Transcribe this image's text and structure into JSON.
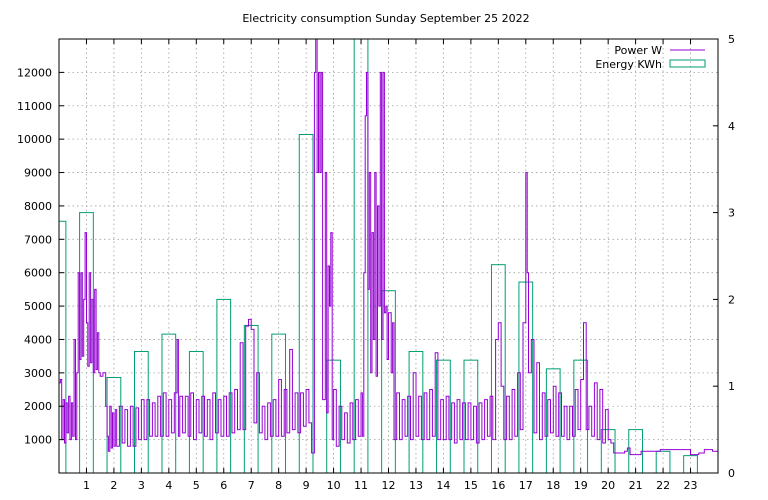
{
  "chart_data": {
    "type": "area",
    "title": "Electricity consumption Sunday September 25 2022",
    "xlim": [
      0,
      24
    ],
    "ylim": [
      0,
      13000
    ],
    "y2lim": [
      0,
      5
    ],
    "x_ticks": [
      1,
      2,
      3,
      4,
      5,
      6,
      7,
      8,
      9,
      10,
      11,
      12,
      13,
      14,
      15,
      16,
      17,
      18,
      19,
      20,
      21,
      22,
      23
    ],
    "y_ticks": [
      1000,
      2000,
      3000,
      4000,
      5000,
      6000,
      7000,
      8000,
      9000,
      10000,
      11000,
      12000
    ],
    "y2_ticks": [
      0,
      1,
      2,
      3,
      4,
      5
    ],
    "grid": true,
    "legend_position": "top-right",
    "colors": {
      "power": "#9400d3",
      "energy": "#009e73"
    },
    "series": [
      {
        "name": "Power W",
        "style": "steps",
        "points": [
          [
            0.0,
            2700
          ],
          [
            0.05,
            2800
          ],
          [
            0.1,
            1000
          ],
          [
            0.15,
            2200
          ],
          [
            0.2,
            900
          ],
          [
            0.25,
            2100
          ],
          [
            0.3,
            1200
          ],
          [
            0.35,
            2300
          ],
          [
            0.4,
            1000
          ],
          [
            0.45,
            2100
          ],
          [
            0.5,
            1100
          ],
          [
            0.55,
            4000
          ],
          [
            0.6,
            1000
          ],
          [
            0.65,
            3000
          ],
          [
            0.7,
            6000
          ],
          [
            0.75,
            3400
          ],
          [
            0.8,
            6000
          ],
          [
            0.85,
            3500
          ],
          [
            0.9,
            5200
          ],
          [
            0.95,
            7200
          ],
          [
            1.0,
            4500
          ],
          [
            1.05,
            3200
          ],
          [
            1.1,
            6000
          ],
          [
            1.15,
            3300
          ],
          [
            1.2,
            5200
          ],
          [
            1.25,
            3000
          ],
          [
            1.3,
            5500
          ],
          [
            1.35,
            3100
          ],
          [
            1.4,
            4200
          ],
          [
            1.45,
            3000
          ],
          [
            1.5,
            2900
          ],
          [
            1.6,
            3000
          ],
          [
            1.7,
            2000
          ],
          [
            1.75,
            1100
          ],
          [
            1.8,
            650
          ],
          [
            1.85,
            2000
          ],
          [
            1.9,
            750
          ],
          [
            1.95,
            1800
          ],
          [
            2.0,
            800
          ],
          [
            2.05,
            1900
          ],
          [
            2.1,
            800
          ],
          [
            2.2,
            2000
          ],
          [
            2.3,
            900
          ],
          [
            2.4,
            1900
          ],
          [
            2.5,
            800
          ],
          [
            2.6,
            2000
          ],
          [
            2.7,
            800
          ],
          [
            2.8,
            1950
          ],
          [
            2.9,
            1000
          ],
          [
            3.0,
            2200
          ],
          [
            3.1,
            1000
          ],
          [
            3.2,
            2200
          ],
          [
            3.3,
            1100
          ],
          [
            3.4,
            2100
          ],
          [
            3.5,
            1100
          ],
          [
            3.6,
            2300
          ],
          [
            3.7,
            1100
          ],
          [
            3.8,
            2400
          ],
          [
            3.9,
            1100
          ],
          [
            4.0,
            2200
          ],
          [
            4.1,
            1200
          ],
          [
            4.2,
            2400
          ],
          [
            4.3,
            4000
          ],
          [
            4.35,
            1100
          ],
          [
            4.4,
            2300
          ],
          [
            4.5,
            1200
          ],
          [
            4.6,
            2300
          ],
          [
            4.7,
            1100
          ],
          [
            4.8,
            2400
          ],
          [
            4.9,
            1000
          ],
          [
            5.0,
            2200
          ],
          [
            5.1,
            1200
          ],
          [
            5.2,
            2300
          ],
          [
            5.3,
            1100
          ],
          [
            5.4,
            2200
          ],
          [
            5.5,
            1000
          ],
          [
            5.6,
            2400
          ],
          [
            5.7,
            1200
          ],
          [
            5.8,
            2200
          ],
          [
            5.9,
            1100
          ],
          [
            6.0,
            2300
          ],
          [
            6.1,
            1100
          ],
          [
            6.2,
            2400
          ],
          [
            6.3,
            1200
          ],
          [
            6.4,
            2500
          ],
          [
            6.5,
            1300
          ],
          [
            6.6,
            3900
          ],
          [
            6.7,
            1300
          ],
          [
            6.8,
            4400
          ],
          [
            6.9,
            4600
          ],
          [
            7.0,
            4300
          ],
          [
            7.1,
            1500
          ],
          [
            7.2,
            3000
          ],
          [
            7.3,
            1200
          ],
          [
            7.4,
            2000
          ],
          [
            7.5,
            1000
          ],
          [
            7.6,
            2100
          ],
          [
            7.7,
            1100
          ],
          [
            7.8,
            2200
          ],
          [
            7.9,
            1100
          ],
          [
            8.0,
            2800
          ],
          [
            8.1,
            1100
          ],
          [
            8.2,
            2500
          ],
          [
            8.3,
            1200
          ],
          [
            8.4,
            3700
          ],
          [
            8.5,
            1300
          ],
          [
            8.6,
            2400
          ],
          [
            8.7,
            1200
          ],
          [
            8.8,
            2400
          ],
          [
            8.9,
            1400
          ],
          [
            9.0,
            2500
          ],
          [
            9.1,
            1500
          ],
          [
            9.2,
            600
          ],
          [
            9.3,
            12000
          ],
          [
            9.35,
            13000
          ],
          [
            9.4,
            9000
          ],
          [
            9.45,
            12000
          ],
          [
            9.5,
            9000
          ],
          [
            9.55,
            12000
          ],
          [
            9.6,
            2200
          ],
          [
            9.7,
            9000
          ],
          [
            9.75,
            1800
          ],
          [
            9.8,
            6200
          ],
          [
            9.85,
            5000
          ],
          [
            9.9,
            7200
          ],
          [
            9.95,
            1000
          ],
          [
            10.0,
            2500
          ],
          [
            10.1,
            800
          ],
          [
            10.2,
            2000
          ],
          [
            10.3,
            1000
          ],
          [
            10.4,
            1800
          ],
          [
            10.5,
            900
          ],
          [
            10.6,
            2100
          ],
          [
            10.7,
            1000
          ],
          [
            10.8,
            2200
          ],
          [
            10.9,
            1100
          ],
          [
            11.0,
            2400
          ],
          [
            11.05,
            1100
          ],
          [
            11.1,
            6000
          ],
          [
            11.15,
            10700
          ],
          [
            11.2,
            12000
          ],
          [
            11.25,
            5500
          ],
          [
            11.3,
            9000
          ],
          [
            11.35,
            3000
          ],
          [
            11.4,
            7200
          ],
          [
            11.45,
            4000
          ],
          [
            11.5,
            9000
          ],
          [
            11.55,
            2900
          ],
          [
            11.6,
            8000
          ],
          [
            11.65,
            5000
          ],
          [
            11.7,
            12000
          ],
          [
            11.75,
            4000
          ],
          [
            11.8,
            12000
          ],
          [
            11.85,
            4800
          ],
          [
            11.9,
            5000
          ],
          [
            11.95,
            3400
          ],
          [
            12.0,
            4800
          ],
          [
            12.1,
            3000
          ],
          [
            12.15,
            4500
          ],
          [
            12.2,
            1000
          ],
          [
            12.3,
            2400
          ],
          [
            12.4,
            1000
          ],
          [
            12.5,
            2200
          ],
          [
            12.6,
            1100
          ],
          [
            12.7,
            2300
          ],
          [
            12.8,
            1000
          ],
          [
            12.9,
            3000
          ],
          [
            13.0,
            1100
          ],
          [
            13.1,
            2300
          ],
          [
            13.2,
            1000
          ],
          [
            13.3,
            2400
          ],
          [
            13.4,
            1000
          ],
          [
            13.5,
            2500
          ],
          [
            13.6,
            1100
          ],
          [
            13.7,
            3600
          ],
          [
            13.8,
            1000
          ],
          [
            13.9,
            2200
          ],
          [
            14.0,
            1000
          ],
          [
            14.1,
            2300
          ],
          [
            14.2,
            1000
          ],
          [
            14.3,
            2100
          ],
          [
            14.4,
            900
          ],
          [
            14.5,
            2200
          ],
          [
            14.6,
            1000
          ],
          [
            14.7,
            2100
          ],
          [
            14.8,
            1000
          ],
          [
            14.9,
            2100
          ],
          [
            15.0,
            1000
          ],
          [
            15.1,
            2000
          ],
          [
            15.2,
            900
          ],
          [
            15.3,
            2100
          ],
          [
            15.4,
            1000
          ],
          [
            15.5,
            2200
          ],
          [
            15.6,
            1100
          ],
          [
            15.7,
            2300
          ],
          [
            15.8,
            1000
          ],
          [
            15.9,
            4000
          ],
          [
            16.0,
            4500
          ],
          [
            16.1,
            2600
          ],
          [
            16.2,
            1000
          ],
          [
            16.3,
            2300
          ],
          [
            16.4,
            1000
          ],
          [
            16.5,
            2500
          ],
          [
            16.6,
            1100
          ],
          [
            16.7,
            3000
          ],
          [
            16.8,
            1300
          ],
          [
            16.9,
            4500
          ],
          [
            17.0,
            9000
          ],
          [
            17.05,
            6000
          ],
          [
            17.1,
            3000
          ],
          [
            17.2,
            4000
          ],
          [
            17.3,
            1200
          ],
          [
            17.4,
            3300
          ],
          [
            17.5,
            1000
          ],
          [
            17.6,
            2400
          ],
          [
            17.7,
            1100
          ],
          [
            17.8,
            2200
          ],
          [
            17.9,
            1200
          ],
          [
            18.0,
            2600
          ],
          [
            18.1,
            1100
          ],
          [
            18.2,
            2400
          ],
          [
            18.3,
            1100
          ],
          [
            18.4,
            2000
          ],
          [
            18.5,
            1000
          ],
          [
            18.6,
            2000
          ],
          [
            18.7,
            1100
          ],
          [
            18.8,
            2500
          ],
          [
            18.9,
            1300
          ],
          [
            19.0,
            2800
          ],
          [
            19.1,
            4500
          ],
          [
            19.2,
            1300
          ],
          [
            19.3,
            2000
          ],
          [
            19.4,
            1100
          ],
          [
            19.5,
            2700
          ],
          [
            19.6,
            1000
          ],
          [
            19.7,
            2500
          ],
          [
            19.8,
            900
          ],
          [
            19.9,
            1900
          ],
          [
            20.0,
            1000
          ],
          [
            20.1,
            900
          ],
          [
            20.2,
            600
          ],
          [
            20.3,
            600
          ],
          [
            20.6,
            650
          ],
          [
            20.7,
            750
          ],
          [
            20.8,
            550
          ],
          [
            21.2,
            650
          ],
          [
            21.5,
            650
          ],
          [
            21.9,
            700
          ],
          [
            22.2,
            700
          ],
          [
            22.5,
            700
          ],
          [
            22.8,
            700
          ],
          [
            23.0,
            550
          ],
          [
            23.3,
            600
          ],
          [
            23.5,
            700
          ],
          [
            23.8,
            650
          ],
          [
            24.0,
            650
          ]
        ]
      },
      {
        "name": "Energy KWh",
        "style": "boxes",
        "values": [
          2.9,
          3.0,
          1.1,
          1.4,
          1.6,
          1.4,
          2.0,
          1.7,
          1.6,
          3.9,
          1.3,
          5.0,
          2.1,
          1.4,
          1.3,
          1.3,
          2.4,
          2.2,
          1.2,
          1.3,
          0.5,
          0.5,
          0.25,
          0.2
        ]
      }
    ]
  }
}
